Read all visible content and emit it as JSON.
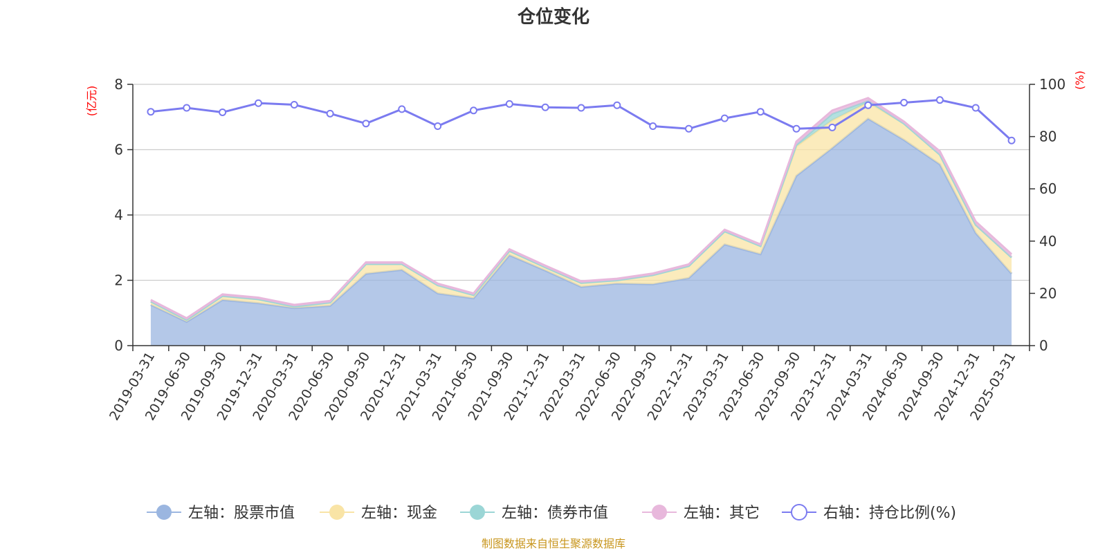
{
  "chart_data": {
    "type": "area",
    "title": "仓位变化",
    "left_axis_unit": "(亿元)",
    "right_axis_unit": "(%)",
    "left_ylim": [
      0,
      8
    ],
    "left_ticks": [
      "0",
      "2",
      "4",
      "6",
      "8"
    ],
    "right_ylim": [
      0,
      100
    ],
    "right_ticks": [
      "0",
      "20",
      "40",
      "60",
      "80",
      "100"
    ],
    "grid": true,
    "legend_position": "bottom",
    "categories": [
      "2019-03-31",
      "2019-06-30",
      "2019-09-30",
      "2019-12-31",
      "2020-03-31",
      "2020-06-30",
      "2020-09-30",
      "2020-12-31",
      "2021-03-31",
      "2021-06-30",
      "2021-09-30",
      "2021-12-31",
      "2022-03-31",
      "2022-06-30",
      "2022-09-30",
      "2022-12-31",
      "2023-03-31",
      "2023-06-30",
      "2023-09-30",
      "2023-12-31",
      "2024-03-31",
      "2024-06-30",
      "2024-09-30",
      "2024-12-31",
      "2025-03-31"
    ],
    "series": [
      {
        "name": "左轴：股票市值",
        "axis": "left",
        "kind": "stacked-area",
        "color": "#9bb6e0",
        "values": [
          1.25,
          0.73,
          1.4,
          1.3,
          1.15,
          1.22,
          2.2,
          2.32,
          1.6,
          1.45,
          2.77,
          2.3,
          1.8,
          1.9,
          1.88,
          2.07,
          3.1,
          2.8,
          5.2,
          6.05,
          6.95,
          6.3,
          5.55,
          3.45,
          2.2
        ]
      },
      {
        "name": "左轴：现金",
        "axis": "left",
        "kind": "stacked-area",
        "color": "#f9e4a6",
        "values": [
          0.1,
          0.06,
          0.12,
          0.12,
          0.05,
          0.1,
          0.3,
          0.18,
          0.25,
          0.1,
          0.13,
          0.1,
          0.12,
          0.1,
          0.28,
          0.37,
          0.4,
          0.25,
          0.9,
          0.85,
          0.5,
          0.5,
          0.3,
          0.25,
          0.5
        ]
      },
      {
        "name": "左轴：债券市值",
        "axis": "left",
        "kind": "stacked-area",
        "color": "#9bd6d6",
        "values": [
          0,
          0,
          0,
          0,
          0,
          0,
          0,
          0,
          0,
          0,
          0,
          0,
          0,
          0,
          0,
          0,
          0,
          0,
          0.05,
          0.2,
          0.05,
          0,
          0,
          0,
          0
        ]
      },
      {
        "name": "左轴：其它",
        "axis": "left",
        "kind": "stacked-area",
        "color": "#e8b8dc",
        "values": [
          0.05,
          0.05,
          0.05,
          0.05,
          0.05,
          0.05,
          0.05,
          0.05,
          0.05,
          0.05,
          0.05,
          0.05,
          0.05,
          0.05,
          0.05,
          0.05,
          0.05,
          0.05,
          0.1,
          0.1,
          0.08,
          0.06,
          0.1,
          0.1,
          0.1
        ]
      },
      {
        "name": "右轴：持仓比例(%)",
        "axis": "right",
        "kind": "line",
        "color": "#7b7bf0",
        "values": [
          89.5,
          91,
          89.3,
          92.8,
          92.2,
          88.8,
          85,
          90.5,
          84,
          90,
          92.5,
          91.2,
          91,
          92,
          84,
          83,
          87,
          89.5,
          83,
          83.5,
          92,
          93,
          94,
          91,
          78.5
        ]
      }
    ]
  },
  "source_text": "制图数据来自恒生聚源数据库"
}
